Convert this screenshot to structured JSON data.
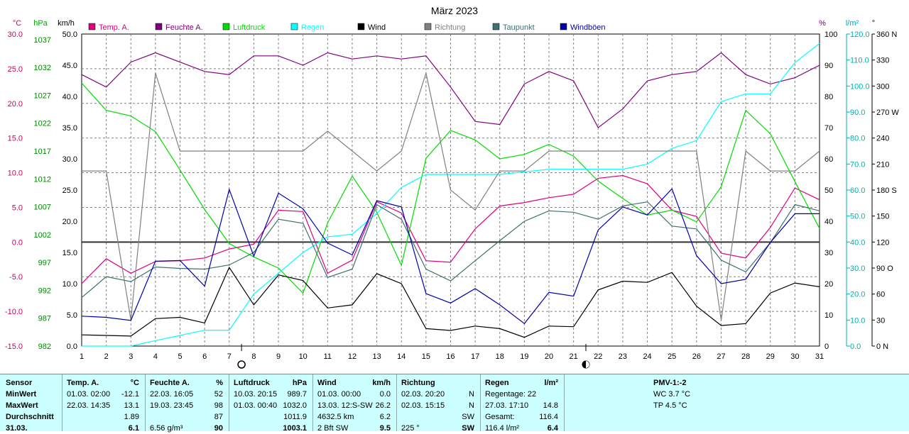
{
  "chart_data": {
    "type": "line",
    "title": "März 2023",
    "x": [
      1,
      2,
      3,
      4,
      5,
      6,
      7,
      8,
      9,
      10,
      11,
      12,
      13,
      14,
      15,
      16,
      17,
      18,
      19,
      20,
      21,
      22,
      23,
      24,
      25,
      26,
      27,
      28,
      29,
      30,
      31
    ],
    "axes": {
      "temp": {
        "unit": "°C",
        "ylim": [
          -15,
          30
        ],
        "ticks": [
          "30.0",
          "25.0",
          "20.0",
          "15.0",
          "10.0",
          "5.0",
          "0.0",
          "-5.0",
          "-10.0",
          "-15.0"
        ]
      },
      "pressure": {
        "unit": "hPa",
        "ylim": [
          982,
          1038
        ],
        "ticks": [
          "1037",
          "1032",
          "1027",
          "1022",
          "1017",
          "1012",
          "1007",
          "1002",
          "997",
          "992",
          "987",
          "982"
        ]
      },
      "wind": {
        "unit": "km/h",
        "ylim": [
          0,
          50
        ],
        "ticks": [
          "50.0",
          "45.0",
          "40.0",
          "35.0",
          "30.0",
          "25.0",
          "20.0",
          "15.0",
          "10.0",
          "5.0",
          "0.0"
        ]
      },
      "humidity": {
        "unit": "%",
        "ylim": [
          0,
          100
        ],
        "ticks": [
          "100",
          "90",
          "80",
          "70",
          "60",
          "50",
          "40",
          "30",
          "20",
          "10",
          "0"
        ]
      },
      "rain": {
        "unit": "l/m²",
        "ylim": [
          0,
          120
        ],
        "ticks": [
          "120.0",
          "110.0",
          "100.0",
          "90.0",
          "80.0",
          "70.0",
          "60.0",
          "50.0",
          "40.0",
          "30.0",
          "20.0",
          "10.0",
          "0.0"
        ]
      },
      "direction": {
        "unit": "°",
        "ylim": [
          0,
          360
        ],
        "ticks": [
          "360 N",
          "330",
          "300",
          "270 W",
          "240",
          "210",
          "180 S",
          "150",
          "120",
          "90 O",
          "60",
          "30",
          "0 N"
        ]
      }
    },
    "series": [
      {
        "name": "Temp. A.",
        "axis": "temp",
        "color": "#e0007f",
        "values": [
          -6.0,
          -2.4,
          -4.5,
          -2.8,
          -2.7,
          -2.3,
          -1.0,
          -0.3,
          4.6,
          4.4,
          -4.5,
          -2.6,
          5.8,
          4.2,
          -2.7,
          -2.9,
          1.9,
          5.2,
          5.7,
          6.4,
          6.9,
          9.2,
          9.6,
          8.4,
          4.6,
          3.7,
          -1.6,
          -2.3,
          2.1,
          7.8,
          6.1
        ]
      },
      {
        "name": "Feuchte A.",
        "axis": "humidity",
        "color": "#800080",
        "values": [
          87,
          83,
          91,
          94,
          91,
          88,
          87,
          93,
          93,
          90,
          94,
          92,
          93,
          92,
          93,
          83,
          72,
          71,
          84,
          88,
          85,
          70,
          76,
          85,
          87,
          88,
          94,
          87,
          84,
          86,
          90
        ]
      },
      {
        "name": "Luftdruck",
        "axis": "pressure",
        "color": "#00dd00",
        "values": [
          1029.2,
          1024.3,
          1023.3,
          1020.5,
          1013.6,
          1006.5,
          1000.4,
          998.0,
          996.0,
          991.5,
          1004.1,
          1012.5,
          1006.0,
          996.5,
          1015.7,
          1020.7,
          1019.0,
          1015.6,
          1016.4,
          1018.2,
          1016.1,
          1011.6,
          1008.5,
          1005.5,
          1006.4,
          1004.3,
          1010.6,
          1024.3,
          1020.1,
          1011.5,
          1003.1
        ]
      },
      {
        "name": "Regen",
        "axis": "rain",
        "color": "#00ffff",
        "values": [
          0,
          0,
          0,
          2.1,
          4.1,
          6.1,
          6.1,
          20.0,
          28.0,
          36.0,
          42.0,
          43.0,
          51.0,
          61.0,
          66.0,
          66.0,
          66.0,
          66.0,
          67.0,
          68.0,
          68.0,
          68.0,
          68.0,
          70.0,
          76.0,
          79.0,
          94.0,
          97.0,
          97.0,
          109.0,
          116.4
        ]
      },
      {
        "name": "Wind",
        "axis": "wind",
        "color": "#000000",
        "values": [
          1.8,
          1.7,
          1.6,
          4.4,
          4.6,
          3.7,
          12.6,
          6.6,
          11.4,
          10.5,
          6.1,
          6.6,
          11.6,
          10.0,
          2.8,
          2.5,
          3.2,
          2.8,
          1.4,
          3.2,
          3.1,
          9.0,
          10.4,
          10.2,
          11.8,
          6.4,
          3.3,
          3.6,
          8.5,
          10.1,
          9.5
        ]
      },
      {
        "name": "Richtung",
        "axis": "direction",
        "color": "#808080",
        "values": [
          202,
          202,
          30,
          315,
          225,
          225,
          225,
          225,
          225,
          225,
          248,
          225,
          202,
          225,
          315,
          180,
          157,
          202,
          202,
          225,
          225,
          225,
          225,
          225,
          225,
          225,
          30,
          225,
          202,
          202,
          225
        ]
      },
      {
        "name": "Taupunkt",
        "axis": "temp",
        "color": "#407070",
        "values": [
          -8.0,
          -5.0,
          -5.7,
          -3.6,
          -3.8,
          -3.9,
          -3.3,
          -1.5,
          3.3,
          2.7,
          -5.1,
          -3.9,
          5.4,
          3.3,
          -3.9,
          -5.6,
          -2.7,
          0.2,
          3.0,
          4.5,
          4.3,
          3.3,
          5.2,
          5.8,
          2.3,
          1.9,
          -2.6,
          -4.3,
          -0.1,
          5.4,
          4.5
        ]
      },
      {
        "name": "Windböen",
        "axis": "wind",
        "color": "#0000aa",
        "values": [
          4.8,
          4.6,
          4.1,
          13.6,
          13.7,
          9.6,
          25.1,
          14.4,
          24.5,
          22.0,
          16.5,
          14.6,
          23.3,
          22.3,
          8.4,
          6.9,
          9.2,
          6.6,
          3.6,
          8.6,
          8.0,
          18.6,
          22.3,
          21.0,
          25.2,
          14.5,
          10.0,
          10.7,
          16.6,
          21.2,
          21.2
        ]
      }
    ],
    "symbols": [
      {
        "x": 7.5,
        "label": "full-moon"
      },
      {
        "x": 21.5,
        "label": "half-moon"
      }
    ],
    "reference_line": {
      "axis": "temp",
      "value": 0
    },
    "grid": true,
    "legend": "top"
  },
  "stats_table": {
    "col_sensor": {
      "head": "Sensor",
      "rows": [
        "MinWert",
        "MaxWert",
        "Durchschnitt",
        "31.03."
      ]
    },
    "col_temp": {
      "head": "Temp. A.",
      "unit": "°C",
      "rows": [
        [
          "01.03.  02:00",
          "-12.1"
        ],
        [
          "22.03.  14:35",
          "13.1"
        ],
        [
          "",
          "1.89"
        ],
        [
          "",
          "6.1"
        ]
      ]
    },
    "col_hum": {
      "head": "Feuchte A.",
      "unit": "%",
      "rows": [
        [
          "22.03.  16:05",
          "52"
        ],
        [
          "19.03.  23:45",
          "98"
        ],
        [
          "",
          "87"
        ],
        [
          "6.56 g/m³",
          "90"
        ]
      ]
    },
    "col_press": {
      "head": "Luftdruck",
      "unit": "hPa",
      "rows": [
        [
          "10.03.  20:15",
          "989.7"
        ],
        [
          "01.03.  00:40",
          "1032.0"
        ],
        [
          "",
          "1011.9"
        ],
        [
          "",
          "1003.1"
        ]
      ]
    },
    "col_wind": {
      "head": "Wind",
      "unit": "km/h",
      "rows": [
        [
          "01.03.  00:00",
          "0.0"
        ],
        [
          "13.03.  12:S-SW",
          "26.2"
        ],
        [
          "4632.5 km",
          "6.2"
        ],
        [
          "2 Bft SW",
          "9.5"
        ]
      ]
    },
    "col_dir": {
      "head": "Richtung",
      "unit": "",
      "rows": [
        [
          "02.03.  20:20",
          "N"
        ],
        [
          "02.03.  15:15",
          "N"
        ],
        [
          "",
          "SW"
        ],
        [
          "225 °",
          "SW"
        ]
      ]
    },
    "col_rain": {
      "head": "Regen",
      "unit": "l/m²",
      "rows": [
        [
          "Regentage: 22",
          ""
        ],
        [
          "27.03.  17:10",
          "14.8"
        ],
        [
          "Gesamt:",
          "116.4"
        ],
        [
          "116.4 l/m²",
          "6.4"
        ]
      ]
    },
    "col_pmv": {
      "head": "PMV-1:-2",
      "rows": [
        "WC 3.7 °C",
        "TP 4.5 °C"
      ]
    }
  }
}
